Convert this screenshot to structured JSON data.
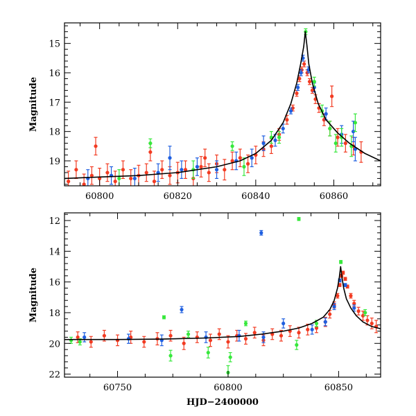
{
  "chart_data": [
    {
      "type": "scatter",
      "title": "",
      "xlabel": "",
      "ylabel": "Magnitude",
      "xlim": [
        60791,
        60872
      ],
      "ylim": [
        19.85,
        14.3
      ],
      "y_inverted": true,
      "xticks": [
        60800,
        60820,
        60840,
        60860
      ],
      "xtick_labels": [
        "60800",
        "60820",
        "60840",
        "60860"
      ],
      "yticks": [
        15,
        16,
        17,
        18,
        19
      ],
      "ytick_labels": [
        "15",
        "16",
        "17",
        "18",
        "19"
      ],
      "grid": false,
      "legend": "none",
      "model": {
        "x": [
          60791,
          60800,
          60810,
          60820,
          60830,
          60836,
          60840,
          60844,
          60847,
          60849,
          60850.5,
          60851.5,
          60852.3,
          60852.7,
          60853.1,
          60853.6,
          60854.5,
          60856,
          60858,
          60861,
          60864,
          60868,
          60872
        ],
        "y": [
          19.6,
          19.55,
          19.5,
          19.4,
          19.2,
          19.0,
          18.75,
          18.3,
          17.7,
          17.05,
          16.35,
          15.7,
          15.1,
          14.6,
          15.05,
          15.7,
          16.35,
          17.05,
          17.6,
          18.05,
          18.4,
          18.75,
          19.0
        ]
      },
      "series": [
        {
          "color": "#f23b22",
          "x": [
            60792,
            60794,
            60796,
            60798,
            60800,
            60802,
            60804,
            60806,
            60808,
            60810,
            60812,
            60814,
            60816,
            60818,
            60820,
            60822,
            60824,
            60826,
            60828,
            60830,
            60832,
            60834,
            60836,
            60838,
            60840,
            60842,
            60844,
            60846,
            60848,
            60849.5,
            60850.5,
            60851.2,
            60851.8,
            60852.4,
            60853.2,
            60853.8,
            60854.5,
            60855.3,
            60856.2,
            60857.5,
            60859,
            60861,
            60863,
            60865,
            60867,
            60859.5,
            60813,
            60799,
            60827
          ],
          "y": [
            19.7,
            19.3,
            19.8,
            19.5,
            19.6,
            19.4,
            19.7,
            19.3,
            19.6,
            19.5,
            19.4,
            19.7,
            19.3,
            19.5,
            19.4,
            19.3,
            19.6,
            19.2,
            19.4,
            19.1,
            19.3,
            19.0,
            18.9,
            19.1,
            18.8,
            18.6,
            18.5,
            18.1,
            17.6,
            17.2,
            16.7,
            16.2,
            15.9,
            15.7,
            16.0,
            16.3,
            16.6,
            16.9,
            17.2,
            17.6,
            17.9,
            18.2,
            18.4,
            18.5,
            18.7,
            16.8,
            18.7,
            18.5,
            18.9
          ],
          "err": [
            0.35,
            0.3,
            0.35,
            0.3,
            0.35,
            0.3,
            0.35,
            0.3,
            0.3,
            0.35,
            0.3,
            0.35,
            0.3,
            0.3,
            0.35,
            0.3,
            0.3,
            0.35,
            0.3,
            0.3,
            0.35,
            0.3,
            0.3,
            0.3,
            0.3,
            0.25,
            0.25,
            0.2,
            0.15,
            0.1,
            0.1,
            0.1,
            0.1,
            0.1,
            0.1,
            0.1,
            0.1,
            0.15,
            0.15,
            0.2,
            0.25,
            0.3,
            0.3,
            0.3,
            0.35,
            0.35,
            0.3,
            0.3,
            0.3
          ]
        },
        {
          "color": "#1f5fe0",
          "x": [
            60797,
            60803,
            60809,
            60815,
            60818,
            60821,
            60825,
            60830,
            60835,
            60839,
            60842,
            60845,
            60847,
            60849,
            60850.8,
            60851.6,
            60852.1,
            60853.5,
            60855,
            60858,
            60862,
            60865,
            60865.5
          ],
          "y": [
            19.6,
            19.5,
            19.6,
            19.4,
            18.9,
            19.3,
            19.2,
            19.3,
            19.0,
            18.9,
            18.4,
            18.3,
            17.9,
            17.3,
            16.5,
            16.0,
            15.5,
            15.9,
            16.5,
            17.4,
            18.1,
            18.0,
            18.6
          ],
          "err": [
            0.3,
            0.3,
            0.35,
            0.3,
            0.4,
            0.3,
            0.3,
            0.3,
            0.3,
            0.3,
            0.25,
            0.2,
            0.15,
            0.1,
            0.1,
            0.1,
            0.1,
            0.1,
            0.15,
            0.2,
            0.3,
            0.35,
            0.4
          ]
        },
        {
          "color": "#37e83c",
          "x": [
            60805,
            60813,
            60824,
            60834,
            60837,
            60844,
            60846,
            60852.8,
            60855,
            60857,
            60859,
            60860.5,
            60862,
            60864.5,
            60865.5
          ],
          "y": [
            19.6,
            18.4,
            19.3,
            18.5,
            19.2,
            18.2,
            18.2,
            14.6,
            16.3,
            17.3,
            17.9,
            18.4,
            18.2,
            18.5,
            17.7
          ],
          "err": [
            0.3,
            0.15,
            0.3,
            0.15,
            0.3,
            0.2,
            0.2,
            0.1,
            0.15,
            0.2,
            0.25,
            0.3,
            0.3,
            0.35,
            0.3
          ]
        }
      ]
    },
    {
      "type": "scatter",
      "title": "",
      "xlabel": "HJD−2400000",
      "ylabel": "Magnitude",
      "xlim": [
        60726,
        60869
      ],
      "ylim": [
        22.2,
        11.5
      ],
      "y_inverted": true,
      "xticks": [
        60750,
        60800,
        60850
      ],
      "xtick_labels": [
        "60750",
        "60800",
        "60850"
      ],
      "yticks": [
        12,
        14,
        16,
        18,
        20,
        22
      ],
      "ytick_labels": [
        "12",
        "14",
        "16",
        "18",
        "20",
        "22"
      ],
      "grid": false,
      "legend": "none",
      "model": {
        "x": [
          60726,
          60750,
          60770,
          60790,
          60805,
          60815,
          60825,
          60832,
          60838,
          60843,
          60846,
          60848,
          60849.5,
          60850.3,
          60850.9,
          60851.5,
          60852.3,
          60853.5,
          60855.5,
          60858,
          60861,
          60865,
          60869
        ],
        "y": [
          19.75,
          19.75,
          19.72,
          19.65,
          19.55,
          19.4,
          19.2,
          19.0,
          18.7,
          18.3,
          17.8,
          17.2,
          16.4,
          15.7,
          15.0,
          15.7,
          16.4,
          17.1,
          17.7,
          18.2,
          18.6,
          18.9,
          19.05
        ]
      },
      "series": [
        {
          "color": "#f23b22",
          "x": [
            60732,
            60738,
            60744,
            60750,
            60756,
            60762,
            60768,
            60774,
            60780,
            60786,
            60792,
            60796,
            60800,
            60804,
            60808,
            60812,
            60816,
            60820,
            60824,
            60828,
            60832,
            60836,
            60840,
            60844,
            60846,
            60848,
            60849.5,
            60850.5,
            60851.3,
            60852,
            60853,
            60854,
            60855.5,
            60857,
            60859,
            60861,
            60863,
            60865,
            60867
          ],
          "y": [
            19.6,
            19.9,
            19.5,
            19.8,
            19.6,
            19.9,
            19.7,
            19.5,
            20.0,
            19.6,
            19.8,
            19.4,
            19.9,
            19.5,
            19.7,
            19.3,
            19.8,
            19.4,
            19.5,
            19.2,
            19.3,
            19.1,
            19.0,
            18.6,
            18.1,
            17.5,
            16.9,
            16.2,
            15.6,
            15.4,
            15.8,
            16.3,
            16.9,
            17.4,
            17.9,
            18.2,
            18.5,
            18.7,
            18.9
          ],
          "err": [
            0.35,
            0.35,
            0.35,
            0.35,
            0.4,
            0.35,
            0.4,
            0.35,
            0.4,
            0.35,
            0.4,
            0.35,
            0.4,
            0.35,
            0.35,
            0.35,
            0.35,
            0.35,
            0.35,
            0.35,
            0.35,
            0.35,
            0.3,
            0.3,
            0.25,
            0.2,
            0.15,
            0.1,
            0.1,
            0.1,
            0.1,
            0.1,
            0.15,
            0.2,
            0.25,
            0.3,
            0.3,
            0.35,
            0.4
          ]
        },
        {
          "color": "#1f5fe0",
          "x": [
            60735,
            60755,
            60770,
            60779,
            60790,
            60805,
            60815,
            60816,
            60825,
            60838,
            60844,
            60848,
            60850.5,
            60853,
            60857
          ],
          "y": [
            19.6,
            19.7,
            19.8,
            17.8,
            19.6,
            19.5,
            12.8,
            19.6,
            18.7,
            19.1,
            18.6,
            17.6,
            15.9,
            16.2,
            17.7
          ],
          "err": [
            0.3,
            0.3,
            0.35,
            0.2,
            0.35,
            0.35,
            0.15,
            0.35,
            0.3,
            0.3,
            0.25,
            0.2,
            0.1,
            0.1,
            0.2
          ],
          "mark": "tick"
        },
        {
          "color": "#37e83c",
          "x": [
            60729,
            60733,
            60771,
            60774,
            60782,
            60791,
            60800,
            60801,
            60808,
            60831,
            60832,
            60840,
            60851,
            60862
          ],
          "y": [
            19.8,
            19.9,
            18.3,
            20.8,
            19.4,
            20.6,
            21.9,
            20.9,
            18.7,
            20.1,
            11.9,
            18.7,
            14.7,
            18.0
          ],
          "err": [
            0.2,
            0.2,
            0.1,
            0.35,
            0.2,
            0.35,
            0.45,
            0.3,
            0.15,
            0.3,
            0.1,
            0.2,
            0.1,
            0.2
          ]
        }
      ]
    }
  ]
}
